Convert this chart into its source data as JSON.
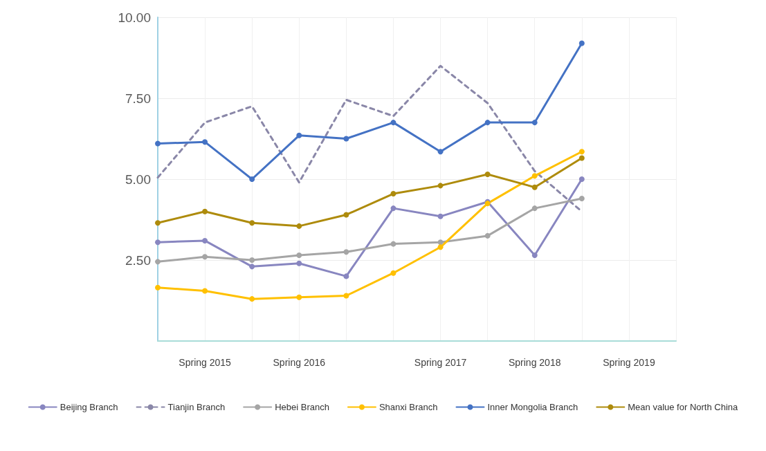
{
  "chart_data": {
    "type": "line",
    "categories": [
      null,
      "Spring 2015",
      null,
      "Spring 2016",
      null,
      null,
      "Spring 2017",
      null,
      "Spring 2018",
      null,
      "Spring 2019",
      null
    ],
    "ylim": [
      0,
      10
    ],
    "yticks": [
      {
        "value": 2.5,
        "label": "2.50"
      },
      {
        "value": 5,
        "label": "5.00"
      },
      {
        "value": 7.5,
        "label": "7.50"
      },
      {
        "value": 10,
        "label": "10.00"
      }
    ],
    "series": [
      {
        "name": "Beijing Branch",
        "color": "#8886c0",
        "values": [
          3.05,
          3.1,
          2.3,
          2.4,
          2.0,
          4.1,
          3.85,
          4.3,
          2.65,
          5.0,
          null,
          null
        ]
      },
      {
        "name": "Tianjin Branch",
        "color": "#8a87a8",
        "marker": "none",
        "line_style": "dashed",
        "values": [
          5.05,
          6.75,
          7.25,
          4.9,
          7.45,
          6.95,
          8.5,
          7.35,
          5.25,
          4.0,
          null,
          null
        ]
      },
      {
        "name": "Hebei Branch",
        "color": "#a5a5a5",
        "values": [
          2.45,
          2.6,
          2.5,
          2.65,
          2.75,
          3.0,
          3.05,
          3.25,
          4.1,
          4.4,
          null,
          null
        ]
      },
      {
        "name": "Shanxi Branch",
        "color": "#ffc000",
        "values": [
          1.65,
          1.55,
          1.3,
          1.35,
          1.4,
          2.1,
          2.9,
          4.25,
          5.1,
          5.85,
          null,
          null
        ]
      },
      {
        "name": "Inner Mongolia Branch",
        "color": "#4472c4",
        "values": [
          6.1,
          6.15,
          5.0,
          6.35,
          6.25,
          6.75,
          5.85,
          6.75,
          6.75,
          9.2,
          null,
          null
        ]
      },
      {
        "name": "Mean value for North China",
        "color": "#ae8b0c",
        "values": [
          3.65,
          4.0,
          3.65,
          3.55,
          3.9,
          4.55,
          4.8,
          5.15,
          4.75,
          5.65,
          null,
          null
        ]
      }
    ],
    "marker": "circle",
    "line_style": "solid",
    "grid": true,
    "legend": "bottom"
  }
}
